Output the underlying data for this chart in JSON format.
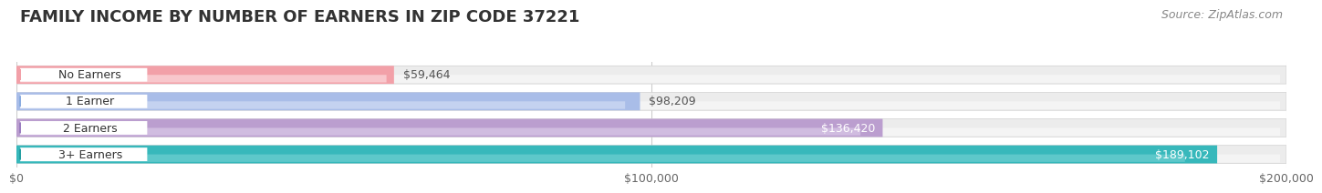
{
  "title": "FAMILY INCOME BY NUMBER OF EARNERS IN ZIP CODE 37221",
  "source": "Source: ZipAtlas.com",
  "categories": [
    "No Earners",
    "1 Earner",
    "2 Earners",
    "3+ Earners"
  ],
  "values": [
    59464,
    98209,
    136420,
    189102
  ],
  "bar_colors": [
    "#f2a0a8",
    "#a9bde8",
    "#bb9ecf",
    "#37b8bb"
  ],
  "bar_colors_light": [
    "#fde8ea",
    "#dce5f7",
    "#e2d5ef",
    "#7dd6d8"
  ],
  "bar_bg_color": "#ececec",
  "bar_bg_color_light": "#f8f8f8",
  "label_bg_colors": [
    "#f2a0a8",
    "#8aace0",
    "#9b7ec0",
    "#259fa2"
  ],
  "value_colors": [
    "#555555",
    "#555555",
    "#ffffff",
    "#ffffff"
  ],
  "value_labels": [
    "$59,464",
    "$98,209",
    "$136,420",
    "$189,102"
  ],
  "xlim": [
    0,
    200000
  ],
  "xtick_labels": [
    "$0",
    "$100,000",
    "$200,000"
  ],
  "xtick_values": [
    0,
    100000,
    200000
  ],
  "background_color": "#ffffff",
  "title_fontsize": 13,
  "source_fontsize": 9,
  "label_fontsize": 9,
  "value_fontsize": 9
}
